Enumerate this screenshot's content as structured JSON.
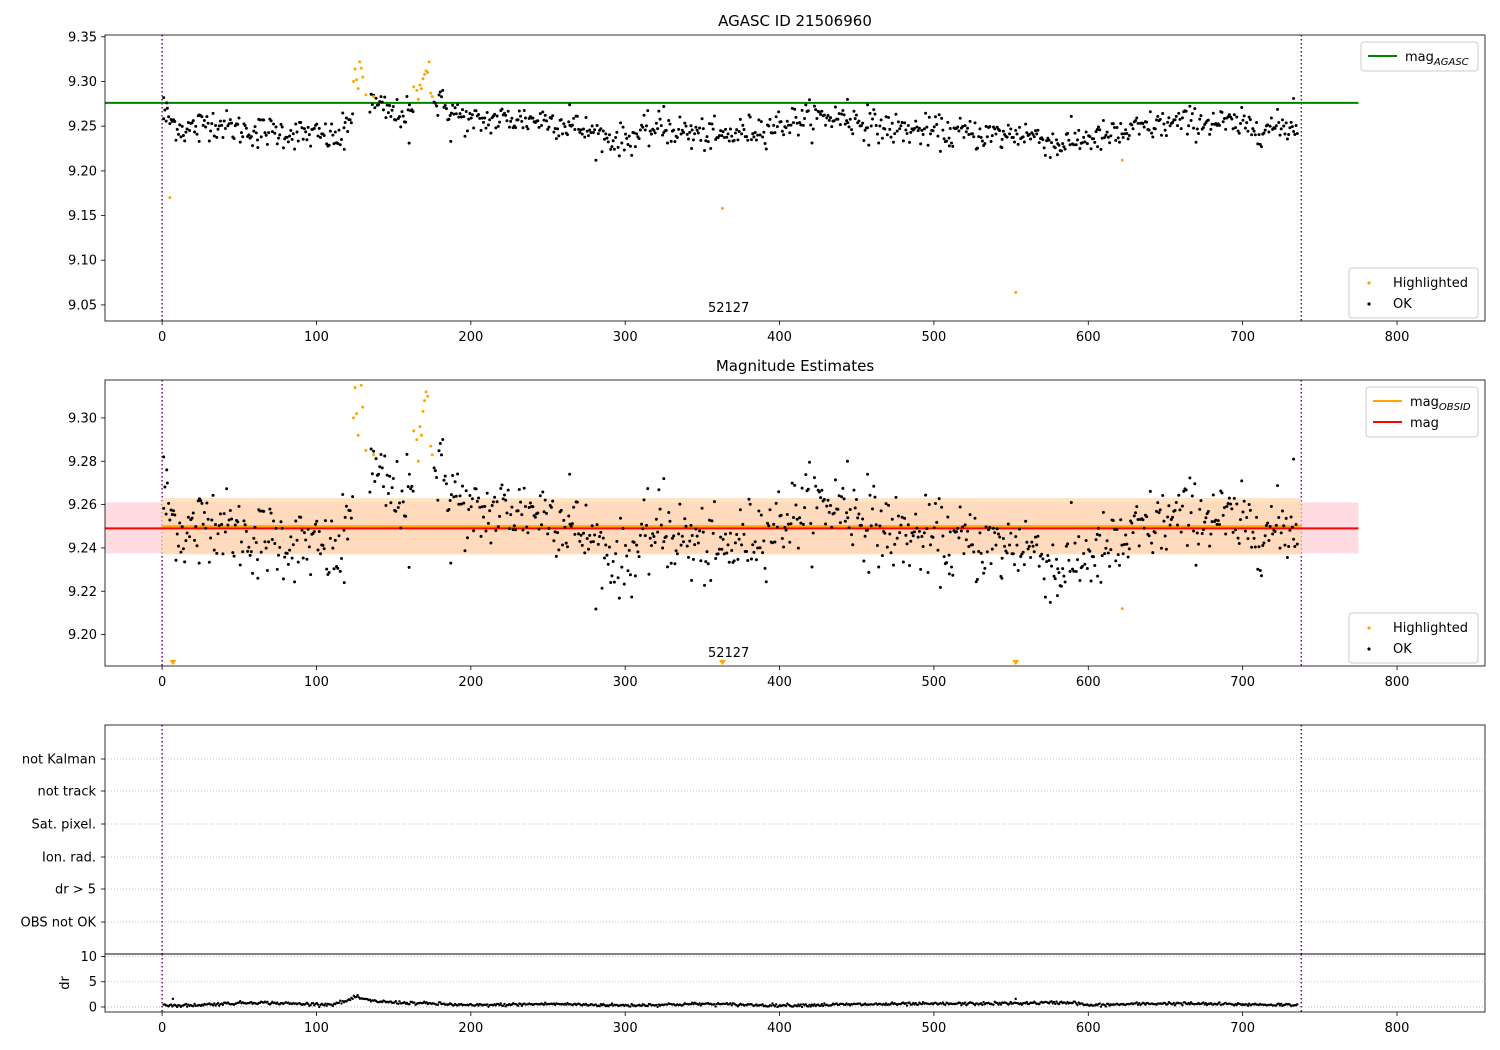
{
  "chart_data": [
    {
      "type": "scatter",
      "title": "AGASC ID 21506960",
      "obsid_label": "52127",
      "xlim": [
        -37,
        857
      ],
      "ylim": [
        9.032,
        9.352
      ],
      "xticks": [
        0,
        100,
        200,
        300,
        400,
        500,
        600,
        700,
        800
      ],
      "yticks": [
        9.05,
        9.1,
        9.15,
        9.2,
        9.25,
        9.3,
        9.35
      ],
      "yticklabels": [
        "9.05",
        "9.10",
        "9.15",
        "9.20",
        "9.25",
        "9.30",
        "9.35"
      ],
      "obs_bounds": [
        0,
        738
      ],
      "legend_upper": {
        "position": "upper-right",
        "entries": [
          {
            "label": "mag",
            "sub": "AGASC",
            "color": "#008000"
          }
        ]
      },
      "legend_lower": {
        "position": "lower-right",
        "entries": [
          {
            "label": "Highlighted",
            "color": "#ffa500"
          },
          {
            "label": "OK",
            "color": "#000000"
          }
        ]
      },
      "hlines": [
        {
          "name": "mag_AGASC",
          "y": 9.276,
          "x": [
            -37,
            775
          ],
          "color": "#008000"
        }
      ],
      "ok_trend": [
        [
          0,
          9.262
        ],
        [
          15,
          9.245
        ],
        [
          30,
          9.256
        ],
        [
          50,
          9.246
        ],
        [
          70,
          9.244
        ],
        [
          100,
          9.24
        ],
        [
          115,
          9.236
        ],
        [
          122,
          9.262
        ],
        [
          130,
          9.28
        ],
        [
          140,
          9.272
        ],
        [
          150,
          9.263
        ],
        [
          165,
          9.266
        ],
        [
          180,
          9.276
        ],
        [
          200,
          9.254
        ],
        [
          220,
          9.258
        ],
        [
          250,
          9.257
        ],
        [
          270,
          9.248
        ],
        [
          290,
          9.236
        ],
        [
          300,
          9.234
        ],
        [
          320,
          9.248
        ],
        [
          340,
          9.244
        ],
        [
          360,
          9.237
        ],
        [
          380,
          9.245
        ],
        [
          400,
          9.252
        ],
        [
          420,
          9.26
        ],
        [
          440,
          9.26
        ],
        [
          460,
          9.25
        ],
        [
          480,
          9.246
        ],
        [
          500,
          9.244
        ],
        [
          520,
          9.242
        ],
        [
          540,
          9.24
        ],
        [
          560,
          9.242
        ],
        [
          580,
          9.23
        ],
        [
          600,
          9.237
        ],
        [
          620,
          9.24
        ],
        [
          640,
          9.25
        ],
        [
          660,
          9.254
        ],
        [
          680,
          9.255
        ],
        [
          700,
          9.25
        ],
        [
          720,
          9.248
        ],
        [
          738,
          9.25
        ]
      ],
      "ok_points": [
        [
          1,
          9.282
        ],
        [
          3,
          9.276
        ],
        [
          24,
          9.233
        ],
        [
          62,
          9.226
        ],
        [
          118,
          9.224
        ],
        [
          160,
          9.231
        ],
        [
          187,
          9.233
        ],
        [
          264,
          9.274
        ],
        [
          325,
          9.272
        ],
        [
          343,
          9.225
        ],
        [
          444,
          9.28
        ],
        [
          457,
          9.274
        ],
        [
          510,
          9.228
        ],
        [
          544,
          9.226
        ],
        [
          580,
          9.218
        ],
        [
          606,
          9.227
        ],
        [
          733,
          9.281
        ]
      ],
      "highlighted": [
        [
          5,
          9.17
        ],
        [
          124,
          9.3
        ],
        [
          125,
          9.314
        ],
        [
          126,
          9.302
        ],
        [
          127,
          9.292
        ],
        [
          128,
          9.322
        ],
        [
          129,
          9.315
        ],
        [
          130,
          9.305
        ],
        [
          132,
          9.285
        ],
        [
          137,
          9.283
        ],
        [
          163,
          9.294
        ],
        [
          165,
          9.29
        ],
        [
          166,
          9.28
        ],
        [
          167,
          9.296
        ],
        [
          168,
          9.292
        ],
        [
          169,
          9.303
        ],
        [
          170,
          9.308
        ],
        [
          171,
          9.312
        ],
        [
          172,
          9.31
        ],
        [
          173,
          9.322
        ],
        [
          174,
          9.287
        ],
        [
          175,
          9.283
        ],
        [
          363,
          9.158
        ],
        [
          622,
          9.212
        ],
        [
          553,
          9.064
        ]
      ]
    },
    {
      "type": "scatter",
      "title": "Magnitude Estimates",
      "obsid_label": "52127",
      "xlim": [
        -37,
        857
      ],
      "ylim": [
        9.1855,
        9.3175
      ],
      "xticks": [
        0,
        100,
        200,
        300,
        400,
        500,
        600,
        700,
        800
      ],
      "yticks": [
        9.2,
        9.22,
        9.24,
        9.26,
        9.28,
        9.3
      ],
      "yticklabels": [
        "9.20",
        "9.22",
        "9.24",
        "9.26",
        "9.28",
        "9.30"
      ],
      "obs_bounds": [
        0,
        738
      ],
      "legend_upper": {
        "position": "upper-right",
        "entries": [
          {
            "label": "mag",
            "sub": "OBSID",
            "color": "#ffa500"
          },
          {
            "label": "mag",
            "color": "#ff0000"
          }
        ]
      },
      "legend_lower": {
        "position": "lower-right",
        "entries": [
          {
            "label": "Highlighted",
            "color": "#ffa500"
          },
          {
            "label": "OK",
            "color": "#000000"
          }
        ]
      },
      "mag": {
        "value": 9.249,
        "band": [
          9.2375,
          9.261
        ],
        "x": [
          -37,
          775
        ],
        "line_color": "#ff0000",
        "band_color": "#ffc0cb"
      },
      "mag_obsid": {
        "value": 9.25,
        "band": [
          9.237,
          9.263
        ],
        "x": [
          0,
          738
        ],
        "line_color": "#ffa500",
        "band_color": "#ffdab0"
      },
      "clipped_low_markers": [
        7,
        363,
        553
      ]
    },
    {
      "type": "scatter",
      "title": "",
      "xlim": [
        -37,
        857
      ],
      "flag_labels": [
        "not Kalman",
        "not track",
        "Sat. pixel.",
        "Ion. rad.",
        "dr > 5",
        "OBS not OK"
      ],
      "obs_bounds": [
        0,
        738
      ]
    },
    {
      "type": "scatter",
      "ylabel": "dr",
      "xlim": [
        -37,
        857
      ],
      "ylim": [
        -1,
        10.5
      ],
      "yticks": [
        0,
        5,
        10
      ],
      "yticklabels": [
        "0",
        "5",
        "10"
      ],
      "xticks": [
        0,
        100,
        200,
        300,
        400,
        500,
        600,
        700,
        800
      ],
      "obs_bounds": [
        0,
        738
      ],
      "dr_trend": [
        [
          0,
          0.5
        ],
        [
          10,
          0.2
        ],
        [
          30,
          0.5
        ],
        [
          60,
          0.9
        ],
        [
          90,
          0.6
        ],
        [
          110,
          0.5
        ],
        [
          120,
          1.2
        ],
        [
          125,
          2.0
        ],
        [
          135,
          1.2
        ],
        [
          150,
          0.9
        ],
        [
          180,
          0.6
        ],
        [
          200,
          0.3
        ],
        [
          250,
          0.6
        ],
        [
          300,
          0.3
        ],
        [
          350,
          0.6
        ],
        [
          400,
          0.3
        ],
        [
          450,
          0.5
        ],
        [
          500,
          0.6
        ],
        [
          550,
          0.7
        ],
        [
          570,
          0.8
        ],
        [
          590,
          0.9
        ],
        [
          600,
          0.3
        ],
        [
          620,
          0.5
        ],
        [
          650,
          0.7
        ],
        [
          700,
          0.5
        ],
        [
          738,
          0.4
        ]
      ],
      "dr_points": [
        [
          7,
          1.6
        ],
        [
          553,
          1.6
        ]
      ]
    }
  ]
}
